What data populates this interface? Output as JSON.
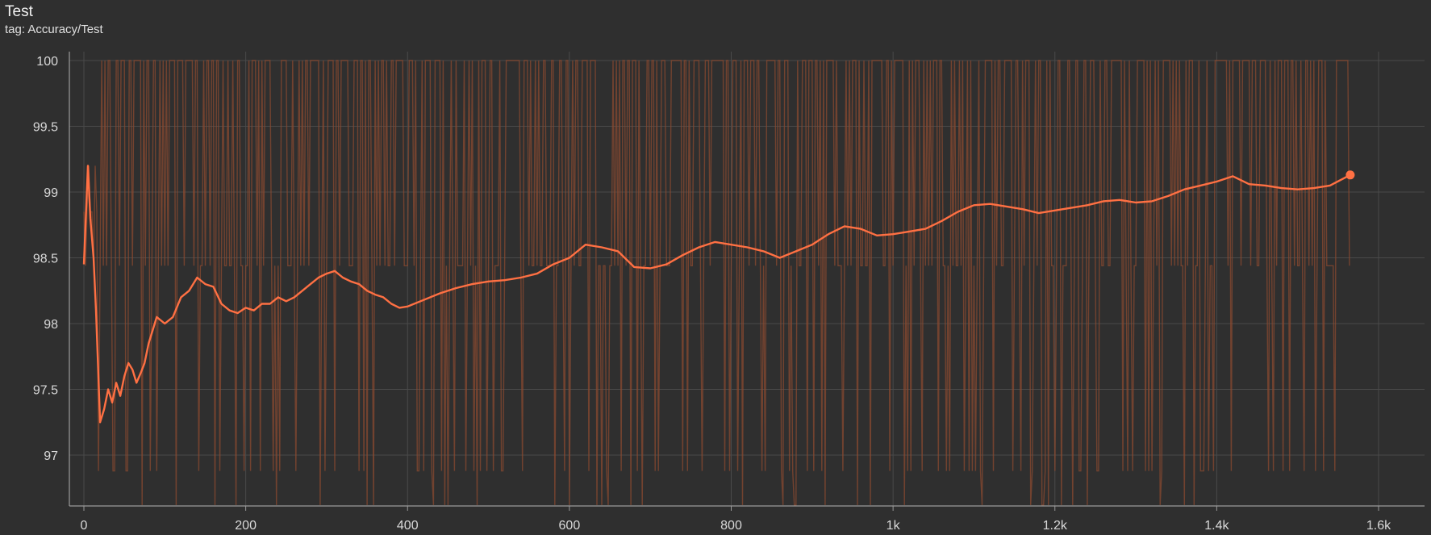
{
  "card": {
    "title": "Test",
    "tag": "tag: Accuracy/Test"
  },
  "colors": {
    "background": "#2f2f2f",
    "grid": "#4a4a4a",
    "axis": "#9a9a9a",
    "raw_series": "#8a4a30",
    "smoothed_series": "#ff7043"
  },
  "chart_data": {
    "type": "line",
    "title": "Test",
    "subtitle": "tag: Accuracy/Test",
    "xlabel": "",
    "ylabel": "",
    "xlim": [
      0,
      1620
    ],
    "ylim": [
      96.62,
      100.12
    ],
    "grid": true,
    "x_ticks": [
      0,
      200,
      400,
      600,
      800,
      1000,
      1200,
      1400,
      1600
    ],
    "x_tick_labels": [
      "0",
      "200",
      "400",
      "600",
      "800",
      "1k",
      "1.2k",
      "1.4k",
      "1.6k"
    ],
    "y_ticks": [
      97,
      97.5,
      98,
      98.5,
      99,
      99.5,
      100
    ],
    "y_tick_labels": [
      "97",
      "97.5",
      "98",
      "98.5",
      "99",
      "99.5",
      "100"
    ],
    "raw_levels": [
      96.62,
      96.88,
      98.44,
      100
    ],
    "raw_last_step": 1565,
    "series": [
      {
        "role": "smoothed",
        "x": [
          0,
          5,
          8,
          12,
          15,
          20,
          25,
          30,
          35,
          40,
          45,
          50,
          55,
          60,
          65,
          70,
          75,
          80,
          90,
          100,
          110,
          120,
          130,
          140,
          150,
          160,
          170,
          180,
          190,
          200,
          210,
          220,
          230,
          240,
          250,
          260,
          270,
          280,
          290,
          300,
          310,
          320,
          330,
          340,
          350,
          360,
          370,
          380,
          390,
          400,
          420,
          440,
          460,
          480,
          500,
          520,
          540,
          560,
          580,
          600,
          620,
          640,
          660,
          680,
          700,
          720,
          740,
          760,
          780,
          800,
          820,
          840,
          860,
          880,
          900,
          920,
          940,
          960,
          980,
          1000,
          1020,
          1040,
          1060,
          1080,
          1100,
          1120,
          1140,
          1160,
          1180,
          1200,
          1220,
          1240,
          1260,
          1280,
          1300,
          1320,
          1340,
          1360,
          1380,
          1400,
          1420,
          1440,
          1460,
          1480,
          1500,
          1520,
          1540,
          1565
        ],
        "values": [
          98.45,
          99.2,
          98.8,
          98.5,
          98.1,
          97.25,
          97.35,
          97.5,
          97.4,
          97.55,
          97.45,
          97.6,
          97.7,
          97.65,
          97.55,
          97.62,
          97.7,
          97.85,
          98.05,
          98.0,
          98.05,
          98.2,
          98.25,
          98.35,
          98.3,
          98.28,
          98.15,
          98.1,
          98.08,
          98.12,
          98.1,
          98.15,
          98.15,
          98.2,
          98.17,
          98.2,
          98.25,
          98.3,
          98.35,
          98.38,
          98.4,
          98.35,
          98.32,
          98.3,
          98.25,
          98.22,
          98.2,
          98.15,
          98.12,
          98.13,
          98.18,
          98.23,
          98.27,
          98.3,
          98.32,
          98.33,
          98.35,
          98.38,
          98.45,
          98.5,
          98.6,
          98.58,
          98.55,
          98.43,
          98.42,
          98.45,
          98.52,
          98.58,
          98.62,
          98.6,
          98.58,
          98.55,
          98.5,
          98.55,
          98.6,
          98.68,
          98.74,
          98.72,
          98.67,
          98.68,
          98.7,
          98.72,
          98.78,
          98.85,
          98.9,
          98.91,
          98.89,
          98.87,
          98.84,
          98.86,
          98.88,
          98.9,
          98.93,
          98.94,
          98.92,
          98.93,
          98.97,
          99.02,
          99.05,
          99.08,
          99.12,
          99.06,
          99.05,
          99.03,
          99.02,
          99.03,
          99.05,
          99.13
        ]
      }
    ]
  }
}
